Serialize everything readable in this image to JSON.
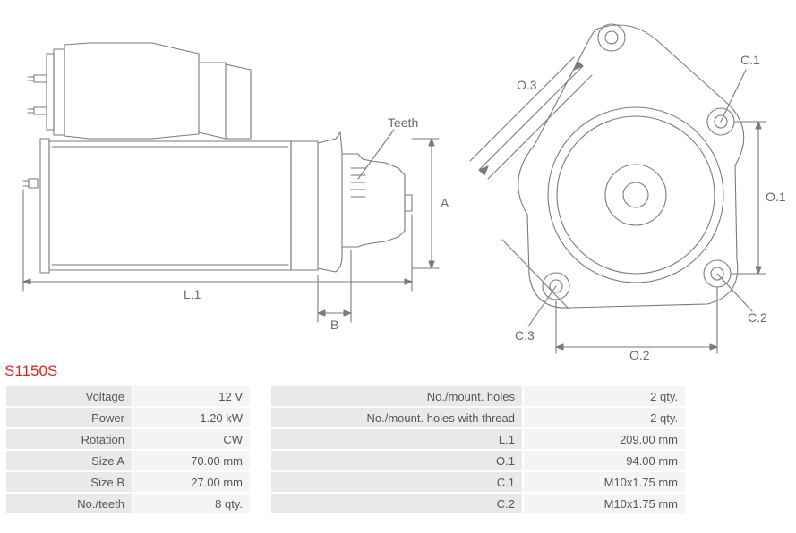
{
  "partNumber": "S1150S",
  "colors": {
    "stroke": "#7a7a7a",
    "label": "#6a6a6a",
    "titleRed": "#dc2626",
    "tableLabelBg": "#e9e9e9",
    "tableValueBg": "#f4f4f4",
    "tableText": "#555555"
  },
  "drawing": {
    "strokeWidth": 1.1,
    "labels": {
      "teeth": "Teeth",
      "A": "A",
      "B": "B",
      "L1": "L.1",
      "C1": "C.1",
      "C2": "C.2",
      "C3": "C.3",
      "O1": "O.1",
      "O2": "O.2",
      "O3": "O.3"
    }
  },
  "specs": {
    "left": [
      {
        "label": "Voltage",
        "value": "12 V"
      },
      {
        "label": "Power",
        "value": "1.20 kW"
      },
      {
        "label": "Rotation",
        "value": "CW"
      },
      {
        "label": "Size A",
        "value": "70.00 mm"
      },
      {
        "label": "Size B",
        "value": "27.00 mm"
      },
      {
        "label": "No./teeth",
        "value": "8 qty."
      }
    ],
    "right": [
      {
        "label": "No./mount. holes",
        "value": "2 qty."
      },
      {
        "label": "No./mount. holes with thread",
        "value": "2 qty."
      },
      {
        "label": "L.1",
        "value": "209.00 mm"
      },
      {
        "label": "O.1",
        "value": "94.00 mm"
      },
      {
        "label": "C.1",
        "value": "M10x1.75 mm"
      },
      {
        "label": "C.2",
        "value": "M10x1.75 mm"
      }
    ]
  }
}
